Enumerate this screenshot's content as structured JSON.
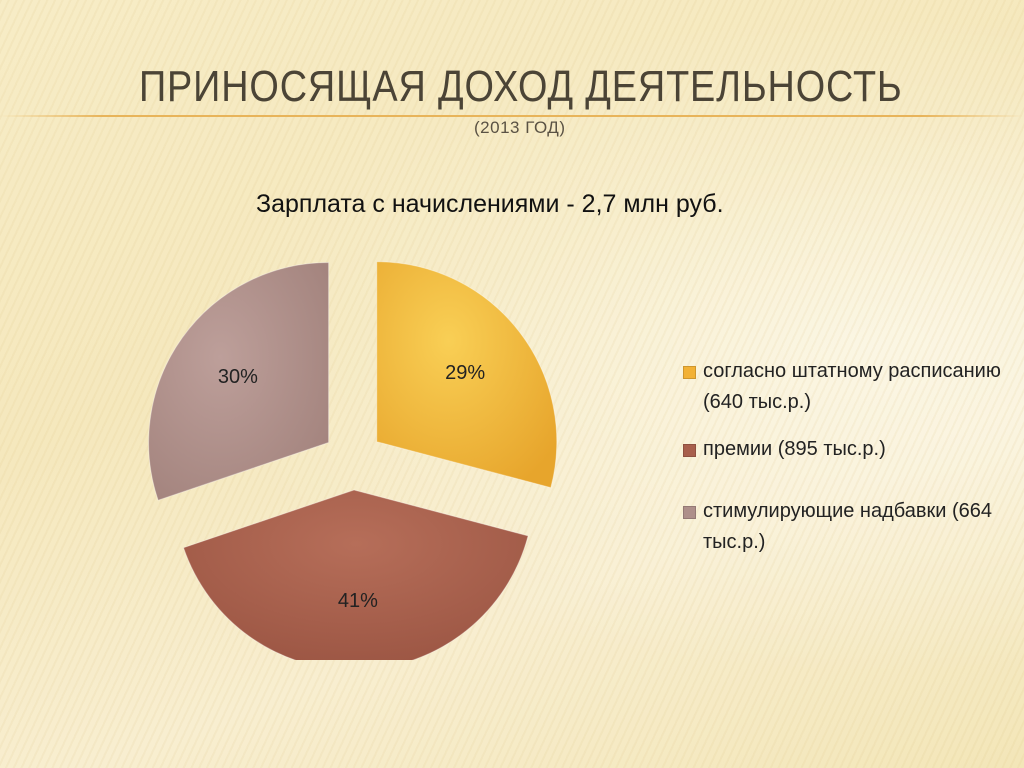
{
  "slide": {
    "title": "Приносящая доход деятельность",
    "subtitle": "(2013 год)"
  },
  "chart_data": {
    "type": "pie",
    "title": "Зарплата с начислениями - 2,7 млн руб.",
    "exploded": true,
    "legend_position": "right",
    "series": [
      {
        "label": "согласно штатному расписанию (640 тыс.р.)",
        "value": 640,
        "percent_label": "29%",
        "color": "#f2b135"
      },
      {
        "label": "премии (895 тыс.р.)",
        "value": 895,
        "percent_label": "41%",
        "color": "#a85f4c"
      },
      {
        "label": "стимулирующие надбавки (664 тыс.р.)",
        "value": 664,
        "percent_label": "30%",
        "color": "#ae8f8a"
      }
    ]
  }
}
